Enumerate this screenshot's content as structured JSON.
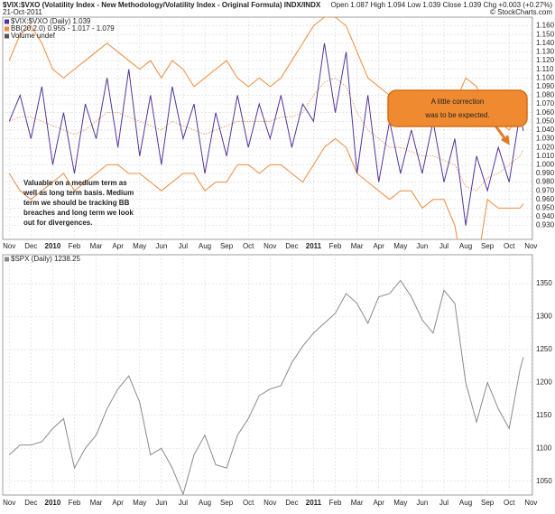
{
  "chart_data": [
    {
      "type": "line",
      "title": "$VIX:$VXO (Volatility Index - New Methodology/Volatility Index - Original Formula) INDX/INDX",
      "date": "21-Oct-2011",
      "quote": "Open 1.087 High 1.094 Low 1.039 Close 1.039 Chg +0.003 (+0.27%)",
      "credit": "© StockCharts.com",
      "volume_label": "Volume undef",
      "callout": [
        "A little correction",
        "was to be expected."
      ],
      "note": [
        "Valuable on a medium term as",
        "well as long term basis. Medium",
        "term we should be tracking BB",
        "breaches and long term we look",
        "out for divergences."
      ],
      "grid": true,
      "x": [
        0,
        0.5,
        1,
        1.5,
        2,
        2.5,
        3,
        3.5,
        4,
        4.5,
        5,
        5.5,
        6,
        6.5,
        7,
        7.5,
        8,
        8.5,
        9,
        9.5,
        10,
        10.5,
        11,
        11.5,
        12,
        12.5,
        13,
        13.5,
        14,
        14.5,
        15,
        15.5,
        16,
        16.5,
        17,
        17.5,
        18,
        18.5,
        19,
        19.5,
        20,
        20.5,
        21,
        21.5,
        22,
        22.5,
        23,
        23.5,
        23.65
      ],
      "xlim": [
        -0.3,
        24.07
      ],
      "xticks": [
        {
          "value": 0,
          "label": "Nov"
        },
        {
          "value": 1,
          "label": "Dec"
        },
        {
          "value": 2,
          "label": "2010"
        },
        {
          "value": 3,
          "label": "Feb"
        },
        {
          "value": 4,
          "label": "Mar"
        },
        {
          "value": 5,
          "label": "Apr"
        },
        {
          "value": 6,
          "label": "May"
        },
        {
          "value": 7,
          "label": "Jun"
        },
        {
          "value": 8,
          "label": "Jul"
        },
        {
          "value": 9,
          "label": "Aug"
        },
        {
          "value": 10,
          "label": "Sep"
        },
        {
          "value": 11,
          "label": "Oct"
        },
        {
          "value": 12,
          "label": "Nov"
        },
        {
          "value": 13,
          "label": "Dec"
        },
        {
          "value": 14,
          "label": "2011"
        },
        {
          "value": 15,
          "label": "Feb"
        },
        {
          "value": 16,
          "label": "Mar"
        },
        {
          "value": 17,
          "label": "Apr"
        },
        {
          "value": 18,
          "label": "May"
        },
        {
          "value": 19,
          "label": "Jun"
        },
        {
          "value": 20,
          "label": "Jul"
        },
        {
          "value": 21,
          "label": "Aug"
        },
        {
          "value": 22,
          "label": "Sep"
        },
        {
          "value": 23,
          "label": "Oct"
        },
        {
          "value": 24,
          "label": "Nov"
        }
      ],
      "ylim": [
        0.914,
        1.17
      ],
      "yticks": [
        {
          "value": 0.93,
          "label": "0.930"
        },
        {
          "value": 0.94,
          "label": "0.940"
        },
        {
          "value": 0.95,
          "label": "0.950"
        },
        {
          "value": 0.96,
          "label": "0.960"
        },
        {
          "value": 0.97,
          "label": "0.970"
        },
        {
          "value": 0.98,
          "label": "0.980"
        },
        {
          "value": 0.99,
          "label": "0.990"
        },
        {
          "value": 1.0,
          "label": "1.000"
        },
        {
          "value": 1.01,
          "label": "1.010"
        },
        {
          "value": 1.02,
          "label": "1.020"
        },
        {
          "value": 1.03,
          "label": "1.030"
        },
        {
          "value": 1.04,
          "label": "1.040"
        },
        {
          "value": 1.05,
          "label": "1.050"
        },
        {
          "value": 1.06,
          "label": "1.060"
        },
        {
          "value": 1.07,
          "label": "1.070"
        },
        {
          "value": 1.08,
          "label": "1.080"
        },
        {
          "value": 1.09,
          "label": "1.090"
        },
        {
          "value": 1.1,
          "label": "1.100"
        },
        {
          "value": 1.11,
          "label": "1.110"
        },
        {
          "value": 1.12,
          "label": "1.120"
        },
        {
          "value": 1.13,
          "label": "1.130"
        },
        {
          "value": 1.14,
          "label": "1.140"
        },
        {
          "value": 1.15,
          "label": "1.150"
        },
        {
          "value": 1.16,
          "label": "1.160"
        }
      ],
      "series": [
        {
          "name": "$VIX:$VXO (Daily) 1.039",
          "color": "#553399",
          "values": [
            1.05,
            1.08,
            1.03,
            1.09,
            1.0,
            1.06,
            0.99,
            1.07,
            1.03,
            1.1,
            1.02,
            1.11,
            1.01,
            1.08,
            1.0,
            1.09,
            1.03,
            1.07,
            0.99,
            1.06,
            1.01,
            1.08,
            1.02,
            1.07,
            1.03,
            1.08,
            1.02,
            1.07,
            1.05,
            1.14,
            1.06,
            1.13,
            0.99,
            1.08,
            0.98,
            1.05,
            0.99,
            1.04,
            0.99,
            1.05,
            0.98,
            1.03,
            0.93,
            1.01,
            0.97,
            1.02,
            0.98,
            1.06,
            1.039
          ]
        }
      ],
      "bollinger": {
        "name": "BB(20,2.0) 0.955 - 1.017 - 1.079",
        "color": "#f08a3c",
        "upper": [
          1.12,
          1.15,
          1.16,
          1.14,
          1.11,
          1.1,
          1.11,
          1.12,
          1.13,
          1.14,
          1.13,
          1.12,
          1.11,
          1.12,
          1.1,
          1.12,
          1.11,
          1.09,
          1.1,
          1.11,
          1.12,
          1.1,
          1.09,
          1.1,
          1.09,
          1.1,
          1.12,
          1.14,
          1.16,
          1.17,
          1.17,
          1.16,
          1.13,
          1.1,
          1.09,
          1.08,
          1.07,
          1.06,
          1.07,
          1.06,
          1.05,
          1.07,
          1.1,
          1.09,
          1.06,
          1.05,
          1.04,
          1.06,
          1.079
        ],
        "middle": [
          1.05,
          1.055,
          1.055,
          1.05,
          1.045,
          1.04,
          1.035,
          1.04,
          1.05,
          1.06,
          1.06,
          1.055,
          1.05,
          1.045,
          1.04,
          1.05,
          1.045,
          1.04,
          1.035,
          1.04,
          1.045,
          1.05,
          1.05,
          1.05,
          1.05,
          1.055,
          1.055,
          1.06,
          1.08,
          1.095,
          1.1,
          1.09,
          1.06,
          1.04,
          1.03,
          1.02,
          1.02,
          1.015,
          1.01,
          1.01,
          1.005,
          1.0,
          0.975,
          0.97,
          0.985,
          0.99,
          1.0,
          1.01,
          1.017
        ],
        "lower": [
          0.99,
          0.97,
          0.96,
          0.97,
          0.98,
          0.99,
          0.97,
          0.98,
          0.99,
          1.0,
          1.0,
          0.99,
          0.99,
          0.98,
          0.97,
          0.98,
          0.99,
          0.99,
          0.97,
          0.98,
          0.98,
          1.0,
          1.0,
          0.99,
          1.0,
          1.0,
          0.99,
          0.98,
          1.0,
          1.02,
          1.03,
          1.02,
          0.99,
          0.98,
          0.97,
          0.96,
          0.97,
          0.97,
          0.95,
          0.96,
          0.96,
          0.93,
          0.86,
          0.88,
          0.96,
          0.95,
          0.95,
          0.95,
          0.955
        ]
      }
    },
    {
      "type": "line",
      "grid": true,
      "x": [
        0,
        0.5,
        1,
        1.5,
        2,
        2.5,
        3,
        3.5,
        4,
        4.5,
        5,
        5.5,
        6,
        6.5,
        7,
        7.5,
        8,
        8.5,
        9,
        9.5,
        10,
        10.5,
        11,
        11.5,
        12,
        12.5,
        13,
        13.5,
        14,
        14.5,
        15,
        15.5,
        16,
        16.5,
        17,
        17.5,
        18,
        18.5,
        19,
        19.5,
        20,
        20.5,
        21,
        21.5,
        22,
        22.5,
        23,
        23.5,
        23.65
      ],
      "xlim": [
        -0.3,
        24.07
      ],
      "xticks": [
        {
          "value": 0,
          "label": "Nov"
        },
        {
          "value": 1,
          "label": "Dec"
        },
        {
          "value": 2,
          "label": "2010"
        },
        {
          "value": 3,
          "label": "Feb"
        },
        {
          "value": 4,
          "label": "Mar"
        },
        {
          "value": 5,
          "label": "Apr"
        },
        {
          "value": 6,
          "label": "May"
        },
        {
          "value": 7,
          "label": "Jun"
        },
        {
          "value": 8,
          "label": "Jul"
        },
        {
          "value": 9,
          "label": "Aug"
        },
        {
          "value": 10,
          "label": "Sep"
        },
        {
          "value": 11,
          "label": "Oct"
        },
        {
          "value": 12,
          "label": "Nov"
        },
        {
          "value": 13,
          "label": "Dec"
        },
        {
          "value": 14,
          "label": "2011"
        },
        {
          "value": 15,
          "label": "Feb"
        },
        {
          "value": 16,
          "label": "Mar"
        },
        {
          "value": 17,
          "label": "Apr"
        },
        {
          "value": 18,
          "label": "May"
        },
        {
          "value": 19,
          "label": "Jun"
        },
        {
          "value": 20,
          "label": "Jul"
        },
        {
          "value": 21,
          "label": "Aug"
        },
        {
          "value": 22,
          "label": "Sep"
        },
        {
          "value": 23,
          "label": "Oct"
        },
        {
          "value": 24,
          "label": "Nov"
        }
      ],
      "ylim": [
        1029,
        1394
      ],
      "yticks": [
        1050,
        1100,
        1150,
        1200,
        1250,
        1300,
        1350
      ],
      "series": [
        {
          "name": "$SPX (Daily) 1238.25",
          "color": "#8a8a8a",
          "values": [
            1090,
            1105,
            1105,
            1110,
            1130,
            1145,
            1070,
            1100,
            1120,
            1160,
            1190,
            1210,
            1170,
            1090,
            1100,
            1070,
            1030,
            1090,
            1120,
            1075,
            1070,
            1120,
            1145,
            1180,
            1190,
            1195,
            1230,
            1255,
            1275,
            1290,
            1305,
            1335,
            1320,
            1290,
            1330,
            1335,
            1355,
            1330,
            1295,
            1275,
            1340,
            1320,
            1200,
            1140,
            1200,
            1160,
            1130,
            1220,
            1238.25
          ]
        }
      ]
    }
  ]
}
